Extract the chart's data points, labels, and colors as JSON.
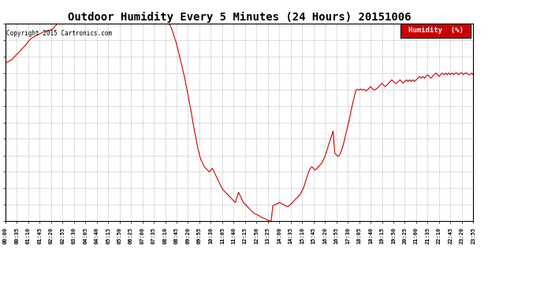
{
  "title": "Outdoor Humidity Every 5 Minutes (24 Hours) 20151006",
  "copyright": "Copyright 2015 Cartronics.com",
  "legend_label": "Humidity  (%)",
  "background_color": "#ffffff",
  "plot_background": "#ffffff",
  "line_color": "#cc0000",
  "line_width": 0.8,
  "yticks": [
    42.0,
    46.8,
    51.7,
    56.5,
    61.3,
    66.2,
    71.0,
    75.8,
    80.7,
    85.5,
    90.3,
    95.2,
    100.0
  ],
  "ylim": [
    42.0,
    100.0
  ],
  "xtick_labels": [
    "00:00",
    "00:35",
    "01:10",
    "01:45",
    "02:20",
    "02:55",
    "03:30",
    "04:05",
    "04:40",
    "05:15",
    "05:50",
    "06:25",
    "07:00",
    "07:35",
    "08:10",
    "08:45",
    "09:20",
    "09:55",
    "10:30",
    "11:05",
    "11:40",
    "12:15",
    "12:50",
    "13:25",
    "14:00",
    "14:35",
    "15:10",
    "15:45",
    "16:20",
    "16:55",
    "17:30",
    "18:05",
    "18:40",
    "19:15",
    "19:50",
    "20:25",
    "21:00",
    "21:35",
    "22:10",
    "22:45",
    "23:20",
    "23:55"
  ],
  "humidity_values": [
    88.5,
    88.7,
    88.9,
    89.2,
    89.5,
    90.0,
    90.5,
    91.0,
    91.5,
    92.0,
    92.5,
    93.0,
    93.5,
    94.0,
    94.8,
    95.3,
    95.7,
    96.0,
    96.2,
    96.5,
    96.8,
    97.0,
    97.2,
    97.5,
    97.7,
    97.8,
    97.8,
    98.0,
    98.2,
    98.5,
    99.0,
    99.5,
    100.0,
    100.0,
    100.0,
    100.0,
    100.0,
    100.0,
    100.0,
    100.0,
    100.0,
    100.0,
    100.0,
    100.0,
    100.0,
    100.0,
    100.0,
    100.0,
    100.0,
    100.0,
    100.0,
    100.0,
    100.0,
    100.0,
    100.0,
    100.0,
    100.0,
    100.0,
    100.0,
    100.0,
    100.0,
    100.0,
    100.0,
    100.0,
    100.0,
    100.0,
    100.0,
    100.0,
    100.0,
    100.0,
    100.0,
    100.0,
    100.0,
    100.0,
    100.0,
    100.0,
    100.0,
    100.0,
    100.0,
    100.0,
    100.0,
    100.0,
    100.0,
    100.0,
    100.0,
    100.0,
    100.0,
    100.0,
    100.0,
    100.0,
    100.0,
    100.0,
    100.0,
    100.0,
    100.0,
    100.0,
    100.0,
    100.0,
    100.0,
    100.0,
    100.0,
    99.5,
    98.5,
    97.0,
    95.5,
    94.0,
    92.0,
    90.0,
    88.0,
    86.0,
    84.0,
    81.5,
    79.0,
    76.5,
    74.0,
    71.0,
    68.5,
    66.0,
    63.5,
    61.5,
    60.0,
    59.0,
    58.0,
    57.5,
    57.0,
    56.5,
    57.0,
    57.5,
    56.5,
    55.5,
    54.5,
    53.5,
    52.5,
    51.5,
    51.0,
    50.5,
    50.0,
    49.5,
    49.0,
    48.5,
    48.0,
    47.5,
    49.0,
    50.5,
    49.5,
    48.5,
    47.5,
    47.0,
    46.5,
    46.0,
    45.5,
    45.0,
    44.5,
    44.2,
    44.0,
    43.8,
    43.5,
    43.2,
    43.0,
    42.8,
    42.5,
    42.3,
    42.1,
    42.0,
    46.5,
    46.8,
    47.0,
    47.2,
    47.5,
    47.3,
    47.0,
    46.8,
    46.5,
    46.3,
    46.5,
    47.0,
    47.5,
    48.0,
    48.5,
    49.0,
    49.5,
    50.0,
    51.0,
    52.0,
    53.5,
    55.0,
    56.5,
    57.5,
    58.0,
    57.5,
    57.0,
    57.5,
    58.0,
    58.5,
    59.0,
    60.0,
    61.0,
    62.5,
    64.0,
    65.5,
    67.0,
    68.5,
    62.0,
    61.5,
    61.0,
    61.5,
    62.5,
    64.0,
    66.0,
    68.0,
    70.0,
    72.0,
    74.5,
    76.5,
    78.5,
    80.5,
    80.7,
    80.5,
    80.8,
    80.5,
    80.7,
    80.3,
    80.5,
    81.0,
    81.5,
    81.0,
    80.5,
    80.7,
    81.0,
    81.5,
    82.0,
    82.5,
    82.0,
    81.5,
    82.0,
    82.5,
    83.0,
    83.5,
    83.0,
    82.5,
    82.5,
    83.0,
    83.5,
    83.0,
    82.5,
    83.0,
    83.5,
    83.0,
    83.5,
    83.0,
    83.5,
    83.0,
    83.5,
    84.0,
    84.5,
    84.0,
    84.5,
    84.0,
    84.5,
    85.0,
    84.5,
    84.0,
    84.5,
    85.0,
    85.5,
    85.0,
    84.5,
    85.0,
    85.5,
    85.0,
    85.5,
    85.0,
    85.5,
    85.0,
    85.5,
    85.0,
    85.5,
    85.5,
    85.0,
    85.5,
    85.5,
    85.0,
    85.5,
    85.5,
    85.0,
    85.0,
    85.5,
    85.0,
    85.5
  ]
}
